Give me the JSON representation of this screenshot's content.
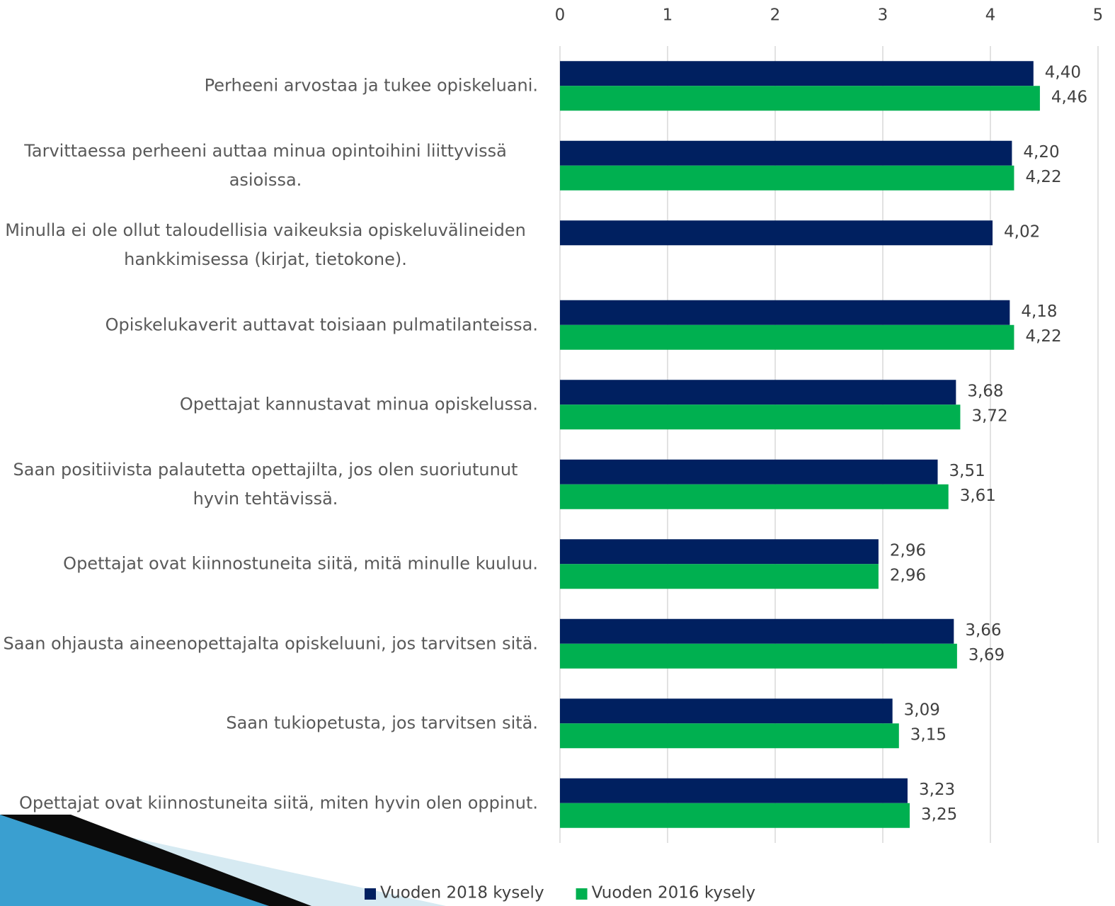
{
  "chart_data": {
    "type": "hbar",
    "categories": [
      "Perheeni arvostaa ja tukee opiskeluani.",
      "Tarvittaessa perheeni auttaa minua opintoihini liittyvissä asioissa.",
      "Minulla ei ole ollut taloudellisia vaikeuksia opiskeluvälineiden hankkimisessa (kirjat, tietokone).",
      "Opiskelukaverit auttavat toisiaan pulmatilanteissa.",
      "Opettajat kannustavat minua opiskelussa.",
      "Saan positiivista palautetta opettajilta, jos olen suoriutunut hyvin tehtävissä.",
      "Opettajat ovat kiinnostuneita siitä, mitä minulle kuuluu.",
      "Saan ohjausta aineenopettajalta opiskeluuni, jos tarvitsen sitä.",
      "Saan tukiopetusta, jos tarvitsen sitä.",
      "Opettajat ovat kiinnostuneita siitä, miten hyvin olen oppinut."
    ],
    "series": [
      {
        "name": "Vuoden 2018 kysely",
        "color": "#002060",
        "values": [
          4.4,
          4.2,
          4.02,
          4.18,
          3.68,
          3.51,
          2.96,
          3.66,
          3.09,
          3.23
        ],
        "value_labels": [
          "4,40",
          "4,20",
          "4,02",
          "4,18",
          "3,68",
          "3,51",
          "2,96",
          "3,66",
          "3,09",
          "3,23"
        ]
      },
      {
        "name": "Vuoden 2016 kysely",
        "color": "#00b050",
        "values": [
          4.46,
          4.22,
          null,
          4.22,
          3.72,
          3.61,
          2.96,
          3.69,
          3.15,
          3.25
        ],
        "value_labels": [
          "4,46",
          "4,22",
          null,
          "4,22",
          "3,72",
          "3,61",
          "2,96",
          "3,69",
          "3,15",
          "3,25"
        ]
      }
    ],
    "xlim": [
      0,
      5
    ],
    "xticks": [
      0,
      1,
      2,
      3,
      4,
      5
    ],
    "grid": true,
    "legend": "bottom"
  }
}
